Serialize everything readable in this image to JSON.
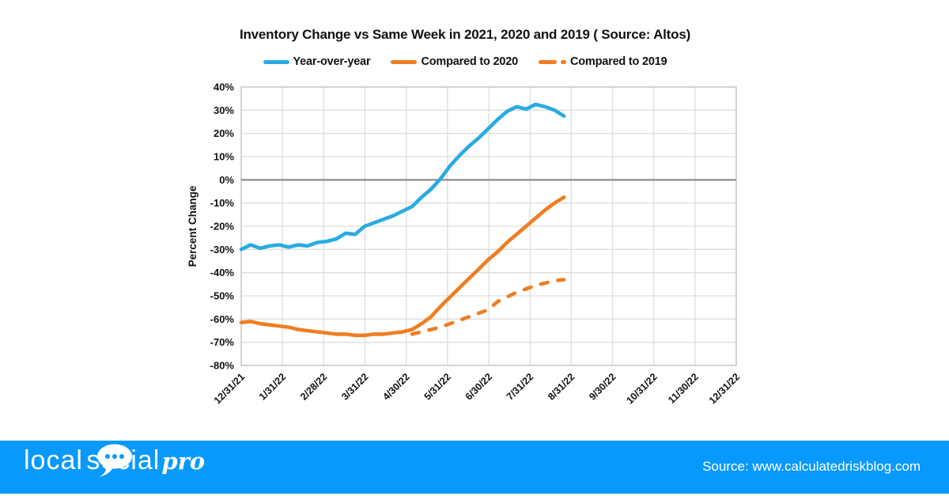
{
  "chart_data": {
    "type": "line",
    "title": "Inventory Change vs Same Week in 2021, 2020 and 2019 ( Source: Altos)",
    "ylabel": "Percent Change",
    "y_axis": {
      "min": -80,
      "max": 40,
      "step": 10,
      "suffix": "%"
    },
    "y_tick_labels": [
      "40%",
      "30%",
      "20%",
      "10%",
      "0%",
      "-10%",
      "-20%",
      "-30%",
      "-40%",
      "-50%",
      "-60%",
      "-70%",
      "-80%"
    ],
    "x_tick_labels": [
      "12/31/21",
      "1/31/22",
      "2/28/22",
      "3/31/22",
      "4/30/22",
      "5/31/22",
      "6/30/22",
      "7/31/22",
      "8/31/22",
      "9/30/22",
      "10/31/22",
      "11/30/22",
      "12/31/22"
    ],
    "x_axis_note": "weekly data points starting 12/31/21; monthly ticks evenly spaced across full year",
    "weeks_full_axis": 52.14,
    "zero_line": 0,
    "grid": true,
    "legend_position": "top",
    "series": [
      {
        "name": "Year-over-year",
        "color": "#29ABE2",
        "style": "solid",
        "start_week": 0,
        "values": [
          -30,
          -28,
          -29.5,
          -28.5,
          -28,
          -29,
          -28,
          -28.5,
          -27,
          -26.5,
          -25.5,
          -23,
          -23.5,
          -20,
          -18.5,
          -17,
          -15.5,
          -13.5,
          -11.5,
          -7.5,
          -4,
          0.5,
          6,
          10.5,
          14.5,
          18,
          22,
          26,
          29.5,
          31.5,
          30.5,
          32.5,
          31.5,
          30,
          27.5
        ]
      },
      {
        "name": "Compared to 2020",
        "color": "#EF7D22",
        "style": "solid",
        "start_week": 0,
        "values": [
          -61.5,
          -61,
          -62,
          -62.5,
          -63,
          -63.5,
          -64.5,
          -65,
          -65.5,
          -66,
          -66.5,
          -66.5,
          -67,
          -67,
          -66.5,
          -66.5,
          -66,
          -65.5,
          -64.5,
          -62,
          -59,
          -54.5,
          -50.5,
          -46.5,
          -42.5,
          -38.5,
          -34.5,
          -31,
          -27,
          -23.5,
          -20,
          -16.5,
          -13,
          -10,
          -7.5
        ]
      },
      {
        "name": "Compared to 2019",
        "color": "#EF7D22",
        "style": "dashed",
        "start_week": 18,
        "values": [
          -66.5,
          -65.5,
          -64.5,
          -63.5,
          -62,
          -60.5,
          -59,
          -57.5,
          -56,
          -52.5,
          -50.5,
          -48.5,
          -47,
          -45.5,
          -44.5,
          -43.5,
          -43
        ]
      }
    ]
  },
  "colors": {
    "blue_line": "#29ABE2",
    "orange_line": "#EF7D22",
    "gridline": "#DDDDDD",
    "plot_border": "#C2C2C2",
    "zero_line": "#808080",
    "footer_background": "#0999FA",
    "text": "#111111"
  },
  "footer": {
    "logo_local": "local",
    "logo_social": "social",
    "logo_pro": "pro",
    "bubble_icon": "speech-bubble-three-dots",
    "source_text": "Source: www.calculatedriskblog.com"
  }
}
